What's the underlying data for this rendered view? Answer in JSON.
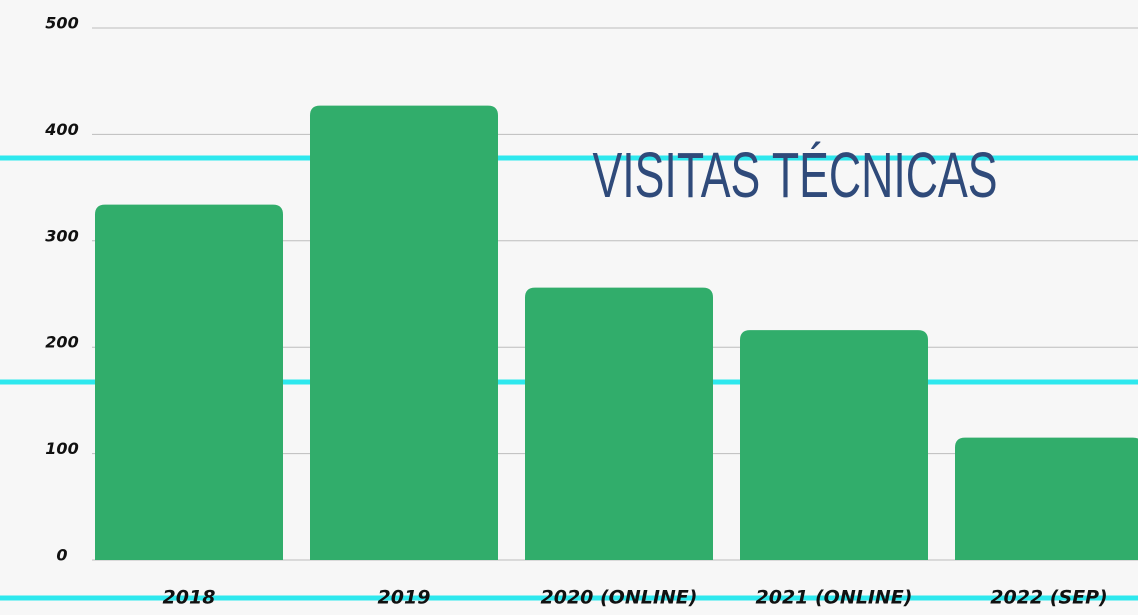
{
  "chart_data": {
    "type": "bar",
    "title": "VISITAS TÉCNICAS",
    "categories": [
      "2018",
      "2019",
      "2020 (ONLINE)",
      "2021 (ONLINE)",
      "2022 (SEP)"
    ],
    "values": [
      334,
      427,
      256,
      216,
      115
    ],
    "color": "#31ad6b",
    "ylim": [
      0,
      500
    ],
    "yticks": [
      0,
      100,
      200,
      300,
      400,
      500
    ],
    "grid": true
  }
}
